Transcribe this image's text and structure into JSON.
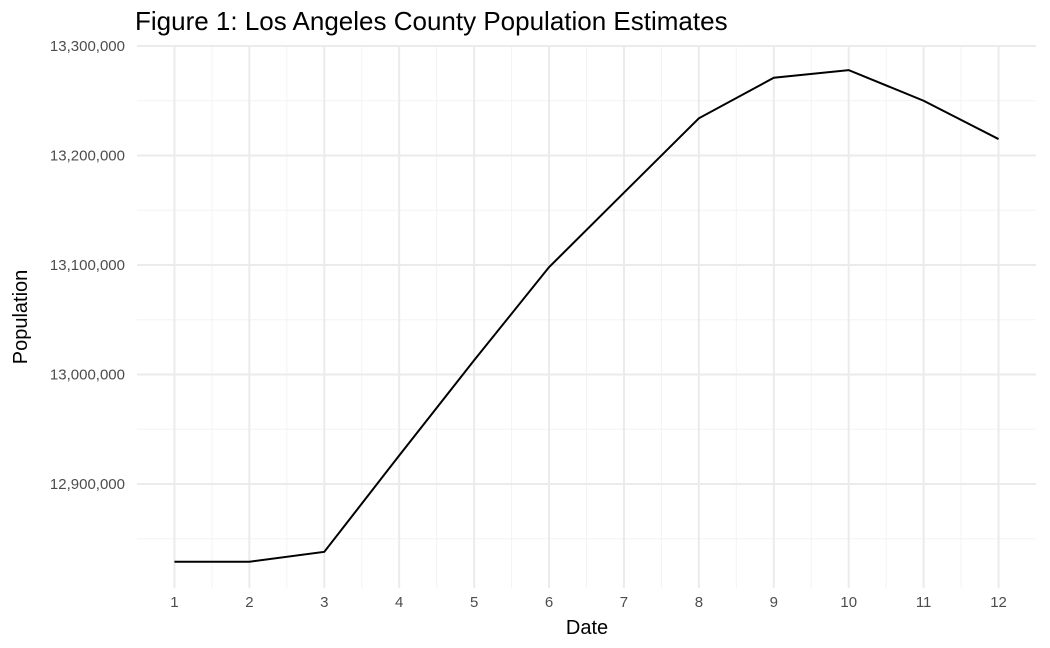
{
  "chart_data": {
    "type": "line",
    "title": "Figure 1: Los Angeles County Population Estimates",
    "xlabel": "Date",
    "ylabel": "Population",
    "x": [
      1,
      2,
      3,
      4,
      5,
      6,
      7,
      8,
      9,
      10,
      11,
      12
    ],
    "xticks": [
      1,
      2,
      3,
      4,
      5,
      6,
      7,
      8,
      9,
      10,
      11,
      12
    ],
    "xtick_labels": [
      "1",
      "2",
      "3",
      "4",
      "5",
      "6",
      "7",
      "8",
      "9",
      "10",
      "11",
      "12"
    ],
    "xlim": [
      0.5,
      12.5
    ],
    "yticks": [
      12900000,
      13000000,
      13100000,
      13200000,
      13300000
    ],
    "ytick_labels": [
      "12,900,000",
      "13,000,000",
      "13,100,000",
      "13,200,000",
      "13,300,000"
    ],
    "ylim": [
      12805000,
      13300000
    ],
    "series": [
      {
        "values": [
          12829000,
          12829000,
          12838000,
          12926000,
          13013000,
          13098000,
          13166000,
          13234000,
          13271000,
          13278000,
          13250000,
          13215000
        ],
        "color": "#000000"
      }
    ],
    "grid": true,
    "legend": "none"
  }
}
